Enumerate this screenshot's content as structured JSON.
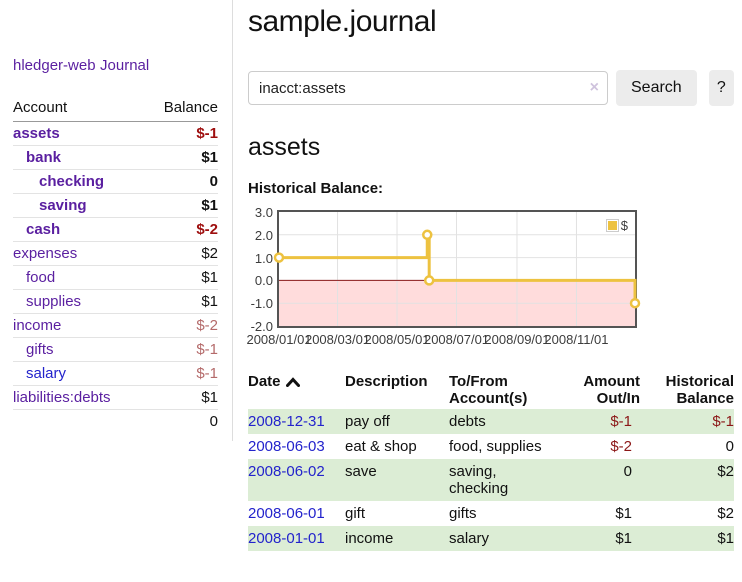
{
  "app": {
    "brand": "hledger-web"
  },
  "sidebar": {
    "journal_label": "Journal",
    "table": {
      "account_header": "Account",
      "balance_header": "Balance",
      "rows": [
        {
          "account": "assets",
          "balance": "$-1",
          "indent": 1,
          "bold": true,
          "link_color": "purple",
          "balance_class": "neg-strong"
        },
        {
          "account": "bank",
          "balance": "$1",
          "indent": 2,
          "bold": true,
          "link_color": "purple",
          "balance_class": ""
        },
        {
          "account": "checking",
          "balance": "0",
          "indent": 3,
          "bold": true,
          "link_color": "purple",
          "balance_class": ""
        },
        {
          "account": "saving",
          "balance": "$1",
          "indent": 3,
          "bold": true,
          "link_color": "purple",
          "balance_class": ""
        },
        {
          "account": "cash",
          "balance": "$-2",
          "indent": 2,
          "bold": true,
          "link_color": "purple",
          "balance_class": "neg-strong"
        },
        {
          "account": "expenses",
          "balance": "$2",
          "indent": 1,
          "bold": false,
          "link_color": "purple",
          "balance_class": ""
        },
        {
          "account": "food",
          "balance": "$1",
          "indent": 2,
          "bold": false,
          "link_color": "purple",
          "balance_class": ""
        },
        {
          "account": "supplies",
          "balance": "$1",
          "indent": 2,
          "bold": false,
          "link_color": "purple",
          "balance_class": ""
        },
        {
          "account": "income",
          "balance": "$-2",
          "indent": 1,
          "bold": false,
          "link_color": "purple",
          "balance_class": "neg-soft"
        },
        {
          "account": "gifts",
          "balance": "$-1",
          "indent": 2,
          "bold": false,
          "link_color": "purple",
          "balance_class": "neg-soft"
        },
        {
          "account": "salary",
          "balance": "$-1",
          "indent": 2,
          "bold": false,
          "link_color": "blue",
          "balance_class": "neg-soft"
        },
        {
          "account": "liabilities:debts",
          "balance": "$1",
          "indent": 1,
          "bold": false,
          "link_color": "purple",
          "balance_class": ""
        }
      ],
      "total": "0"
    }
  },
  "main": {
    "title": "sample.journal",
    "search": {
      "value": "inacct:assets",
      "clear_icon": "×",
      "button_label": "Search",
      "help_label": "?"
    },
    "account_heading": "assets",
    "chart_label": "Historical Balance:"
  },
  "chart_data": {
    "type": "line",
    "title": "Historical Balance",
    "series": [
      {
        "name": "$",
        "points": [
          [
            "2008-01-01",
            1
          ],
          [
            "2008-06-01",
            2
          ],
          [
            "2008-06-03",
            0
          ],
          [
            "2008-12-31",
            -1
          ]
        ],
        "style": "step"
      }
    ],
    "x_ticks": [
      "2008/01/01",
      "2008/03/01",
      "2008/05/01",
      "2008/07/01",
      "2008/09/01",
      "2008/11/01"
    ],
    "y_ticks": [
      "3.0",
      "2.0",
      "1.0",
      "0.0",
      "-1.0",
      "-2.0"
    ],
    "xlim": [
      "2008-01-01",
      "2008-12-31"
    ],
    "ylim": [
      -2,
      3
    ],
    "grid": true,
    "legend_position": "top-right",
    "legend_label": "$",
    "colors": {
      "line": "#edc240",
      "point_fill": "#ffffff",
      "negative_region": "#ffdcdc",
      "zero_line": "#8b1a1a",
      "gridline": "#e2e2e2",
      "border": "#545454"
    }
  },
  "register": {
    "headers": [
      "Date",
      "Description",
      "To/From Account(s)",
      "Amount Out/In",
      "Historical Balance"
    ],
    "rows": [
      {
        "date": "2008-12-31",
        "description": "pay off",
        "accounts": "debts",
        "amount": "$-1",
        "balance": "$-1",
        "amount_neg": true,
        "balance_neg": true
      },
      {
        "date": "2008-06-03",
        "description": "eat & shop",
        "accounts": "food, supplies",
        "amount": "$-2",
        "balance": "0",
        "amount_neg": true,
        "balance_neg": false
      },
      {
        "date": "2008-06-02",
        "description": "save",
        "accounts": "saving, checking",
        "amount": "0",
        "balance": "$2",
        "amount_neg": false,
        "balance_neg": false
      },
      {
        "date": "2008-06-01",
        "description": "gift",
        "accounts": "gifts",
        "amount": "$1",
        "balance": "$2",
        "amount_neg": false,
        "balance_neg": false
      },
      {
        "date": "2008-01-01",
        "description": "income",
        "accounts": "salary",
        "amount": "$1",
        "balance": "$1",
        "amount_neg": false,
        "balance_neg": false
      }
    ]
  }
}
